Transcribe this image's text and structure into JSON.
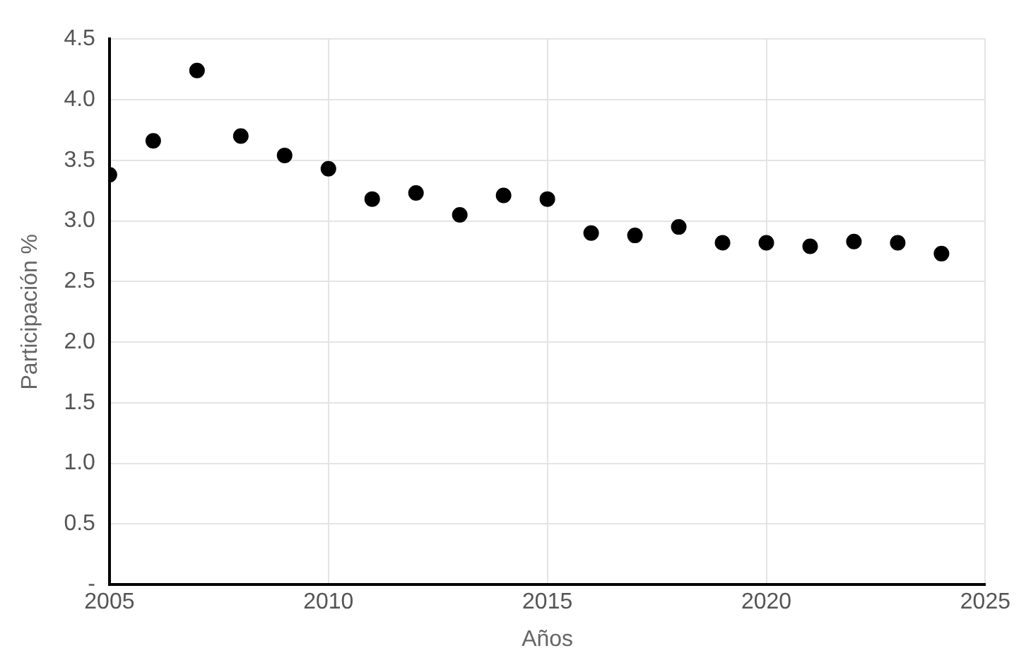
{
  "chart_data": {
    "type": "scatter",
    "xlabel": "Años",
    "ylabel": "Participación %",
    "x": [
      2005,
      2006,
      2007,
      2008,
      2009,
      2010,
      2011,
      2012,
      2013,
      2014,
      2015,
      2016,
      2017,
      2018,
      2019,
      2020,
      2021,
      2022,
      2023,
      2024
    ],
    "values": [
      3.38,
      3.66,
      4.24,
      3.7,
      3.54,
      3.43,
      3.18,
      3.23,
      3.05,
      3.21,
      3.18,
      2.9,
      2.88,
      2.95,
      2.82,
      2.82,
      2.79,
      2.83,
      2.82,
      2.73
    ],
    "color": "#000000",
    "marker": "circle",
    "xlim": [
      2005,
      2025
    ],
    "xticks": [
      2005,
      2010,
      2015,
      2020,
      2025
    ],
    "ylim": [
      0,
      4.5
    ],
    "yticks": [
      {
        "value": 0,
        "label": "-"
      },
      0.5,
      {
        "value": 1,
        "label": "1.0"
      },
      1.5,
      {
        "value": 2,
        "label": "2.0"
      },
      2.5,
      {
        "value": 3,
        "label": "3.0"
      },
      3.5,
      {
        "value": 4,
        "label": "4.0"
      },
      4.5
    ],
    "grid": true,
    "legend": false
  }
}
